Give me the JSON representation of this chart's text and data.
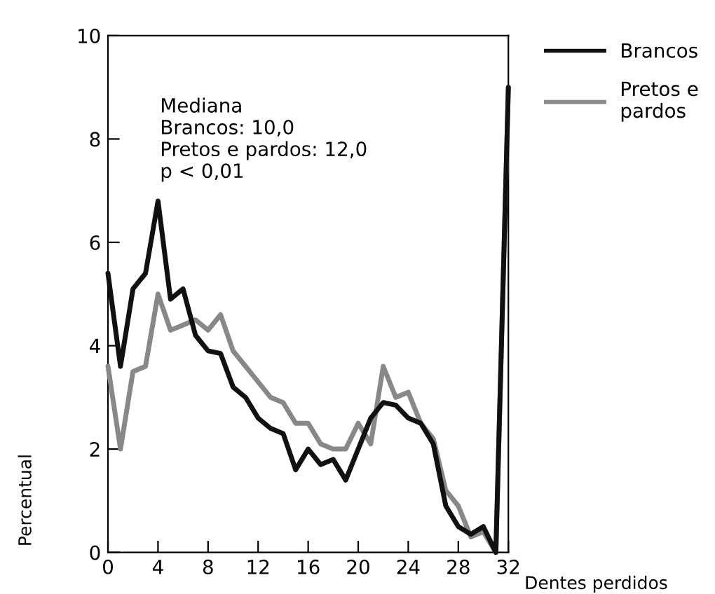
{
  "chart_data": {
    "type": "line",
    "xlabel": "Dentes perdidos",
    "ylabel": "Percentual",
    "x": [
      0,
      1,
      2,
      3,
      4,
      5,
      6,
      7,
      8,
      9,
      10,
      11,
      12,
      13,
      14,
      15,
      16,
      17,
      18,
      19,
      20,
      21,
      22,
      23,
      24,
      25,
      26,
      27,
      28,
      29,
      30,
      31,
      32
    ],
    "series": [
      {
        "name": "Brancos",
        "color": "#111111",
        "values": [
          5.4,
          3.6,
          5.1,
          5.4,
          6.8,
          4.9,
          5.1,
          4.2,
          3.9,
          3.85,
          3.2,
          3.0,
          2.6,
          2.4,
          2.3,
          1.6,
          2.0,
          1.7,
          1.8,
          1.4,
          2.0,
          2.6,
          2.9,
          2.85,
          2.6,
          2.5,
          2.1,
          0.9,
          0.5,
          0.35,
          0.5,
          0.0,
          9.0
        ]
      },
      {
        "name": "Pretos e\npardos",
        "color": "#888888",
        "values": [
          3.6,
          2.0,
          3.5,
          3.6,
          5.0,
          4.3,
          4.4,
          4.5,
          4.3,
          4.6,
          3.9,
          3.6,
          3.3,
          3.0,
          2.9,
          2.5,
          2.5,
          2.1,
          2.0,
          2.0,
          2.5,
          2.1,
          3.6,
          3.0,
          3.1,
          2.5,
          2.2,
          1.2,
          0.9,
          0.3,
          0.4,
          0.0,
          9.0
        ]
      }
    ],
    "xlim": [
      0,
      32
    ],
    "xticks": [
      0,
      4,
      8,
      12,
      16,
      20,
      24,
      28,
      32
    ],
    "ylim": [
      0,
      10
    ],
    "yticks": [
      0,
      2,
      4,
      6,
      8,
      10
    ],
    "annotations": [
      "Mediana\nBrancos: 10,0\nPretos e pardos: 12,0\np < 0,01"
    ],
    "legend": "right",
    "grid": false,
    "marker": "none",
    "line_style": "solid"
  }
}
